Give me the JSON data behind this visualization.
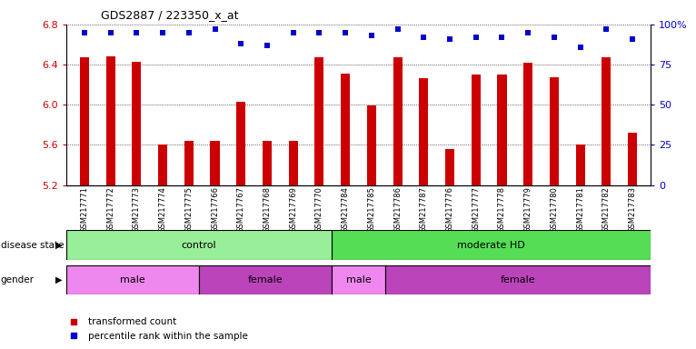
{
  "title": "GDS2887 / 223350_x_at",
  "samples": [
    "GSM217771",
    "GSM217772",
    "GSM217773",
    "GSM217774",
    "GSM217775",
    "GSM217766",
    "GSM217767",
    "GSM217768",
    "GSM217769",
    "GSM217770",
    "GSM217784",
    "GSM217785",
    "GSM217786",
    "GSM217787",
    "GSM217776",
    "GSM217777",
    "GSM217778",
    "GSM217779",
    "GSM217780",
    "GSM217781",
    "GSM217782",
    "GSM217783"
  ],
  "transformed_counts": [
    6.47,
    6.48,
    6.43,
    5.6,
    5.64,
    5.64,
    6.03,
    5.64,
    5.64,
    6.47,
    6.31,
    5.99,
    6.47,
    6.26,
    5.56,
    6.3,
    6.3,
    6.42,
    6.27,
    5.6,
    6.47,
    5.72
  ],
  "percentile_ranks": [
    95,
    95,
    95,
    95,
    95,
    97,
    88,
    87,
    95,
    95,
    95,
    93,
    97,
    92,
    91,
    92,
    92,
    95,
    92,
    86,
    97,
    91
  ],
  "ylim": [
    5.2,
    6.8
  ],
  "yticks": [
    5.2,
    5.6,
    6.0,
    6.4,
    6.8
  ],
  "right_yticks": [
    0,
    25,
    50,
    75,
    100
  ],
  "bar_color": "#cc0000",
  "dot_color": "#0000cc",
  "grid_color": "#000000",
  "disease_state_groups": [
    {
      "label": "control",
      "start": 0,
      "end": 10,
      "color": "#99ee99"
    },
    {
      "label": "moderate HD",
      "start": 10,
      "end": 22,
      "color": "#55dd55"
    }
  ],
  "gender_groups": [
    {
      "label": "male",
      "start": 0,
      "end": 5,
      "color": "#ee88ee"
    },
    {
      "label": "female",
      "start": 5,
      "end": 10,
      "color": "#bb44bb"
    },
    {
      "label": "male",
      "start": 10,
      "end": 12,
      "color": "#ee88ee"
    },
    {
      "label": "female",
      "start": 12,
      "end": 22,
      "color": "#bb44bb"
    }
  ],
  "label_disease": "disease state",
  "label_gender": "gender",
  "legend_bar": "transformed count",
  "legend_dot": "percentile rank within the sample",
  "bar_width": 0.35
}
